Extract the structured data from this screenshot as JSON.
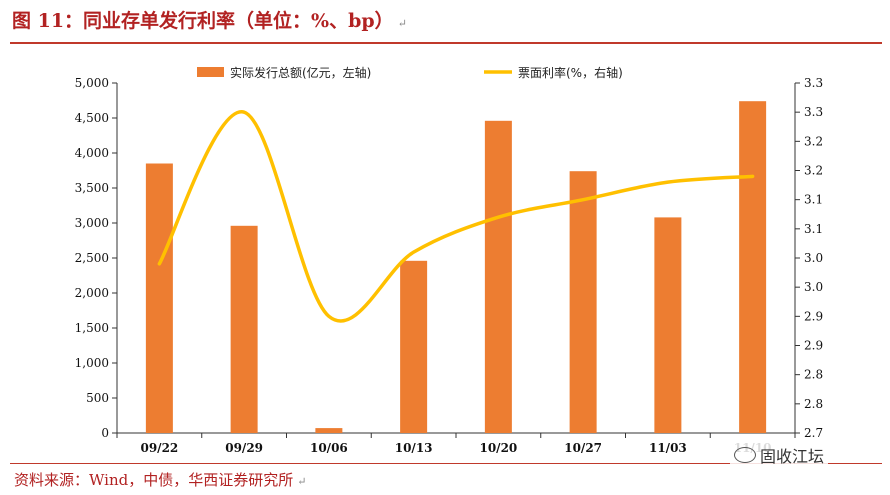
{
  "header": {
    "title": "图 11：同业存单发行利率（单位：%、bp）"
  },
  "footer": {
    "source": "资料来源：Wind，中债，华西证券研究所",
    "watermark": "固收江坛"
  },
  "colors": {
    "bar": "#ed7d31",
    "line": "#ffc000",
    "title": "#b22222",
    "rule": "#c0392b"
  },
  "chart_data": {
    "type": "bar",
    "categories": [
      "09/22",
      "09/29",
      "10/06",
      "10/13",
      "10/20",
      "10/27",
      "11/03",
      "11/10"
    ],
    "series": [
      {
        "name": "实际发行总额(亿元，左轴)",
        "type": "bar",
        "axis": "left",
        "values": [
          3850,
          2960,
          70,
          2460,
          4460,
          3740,
          3080,
          4740
        ]
      },
      {
        "name": "票面利率(%，右轴)",
        "type": "line",
        "axis": "right",
        "smooth": true,
        "values": [
          2.99,
          3.25,
          2.9,
          3.01,
          3.07,
          3.1,
          3.13,
          3.14
        ]
      }
    ],
    "y_left": {
      "ylim": [
        0,
        5000
      ],
      "ticks": [
        0,
        500,
        1000,
        1500,
        2000,
        2500,
        3000,
        3500,
        4000,
        4500,
        5000
      ],
      "tick_labels": [
        "0",
        "500",
        "1,000",
        "1,500",
        "2,000",
        "2,500",
        "3,000",
        "3,500",
        "4,000",
        "4,500",
        "5,000"
      ]
    },
    "y_right": {
      "ylim": [
        2.7,
        3.3
      ],
      "ticks": [
        2.7,
        2.75,
        2.8,
        2.85,
        2.9,
        2.95,
        3.0,
        3.05,
        3.1,
        3.15,
        3.2,
        3.25,
        3.3
      ],
      "tick_labels": [
        "2.7",
        "2.8",
        "2.8",
        "2.9",
        "2.9",
        "3.0",
        "3.0",
        "3.1",
        "3.1",
        "3.2",
        "3.2",
        "3.3",
        "3.3"
      ]
    },
    "legend_position": "top",
    "grid": false
  }
}
